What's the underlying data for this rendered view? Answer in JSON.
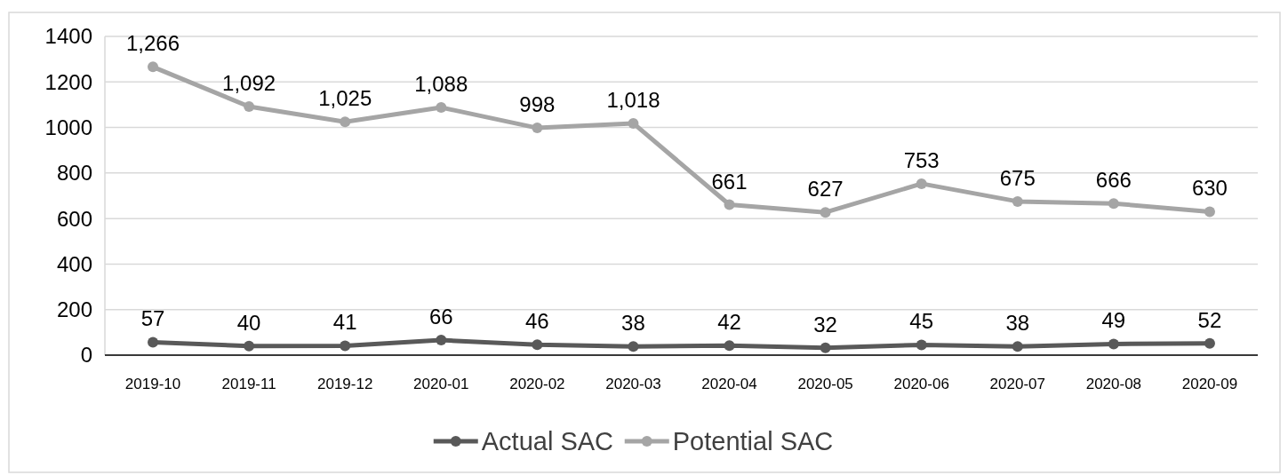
{
  "chart_data": {
    "type": "line",
    "categories": [
      "2019-10",
      "2019-11",
      "2019-12",
      "2020-01",
      "2020-02",
      "2020-03",
      "2020-04",
      "2020-05",
      "2020-06",
      "2020-07",
      "2020-08",
      "2020-09"
    ],
    "series": [
      {
        "name": "Actual SAC",
        "color": "#595959",
        "values": [
          57,
          40,
          41,
          66,
          46,
          38,
          42,
          32,
          45,
          38,
          49,
          52
        ],
        "value_labels": [
          "57",
          "40",
          "41",
          "66",
          "46",
          "38",
          "42",
          "32",
          "45",
          "38",
          "49",
          "52"
        ]
      },
      {
        "name": "Potential SAC",
        "color": "#a5a5a5",
        "values": [
          1266,
          1092,
          1025,
          1088,
          998,
          1018,
          661,
          627,
          753,
          675,
          666,
          630
        ],
        "value_labels": [
          "1,266",
          "1,092",
          "1,025",
          "1,088",
          "998",
          "1,018",
          "661",
          "627",
          "753",
          "675",
          "666",
          "630"
        ]
      }
    ],
    "ylim": [
      0,
      1400
    ],
    "yticks": [
      0,
      200,
      400,
      600,
      800,
      1000,
      1200,
      1400
    ],
    "grid": "y",
    "legend": "bottom",
    "marker": "circle",
    "line_style": "solid"
  }
}
